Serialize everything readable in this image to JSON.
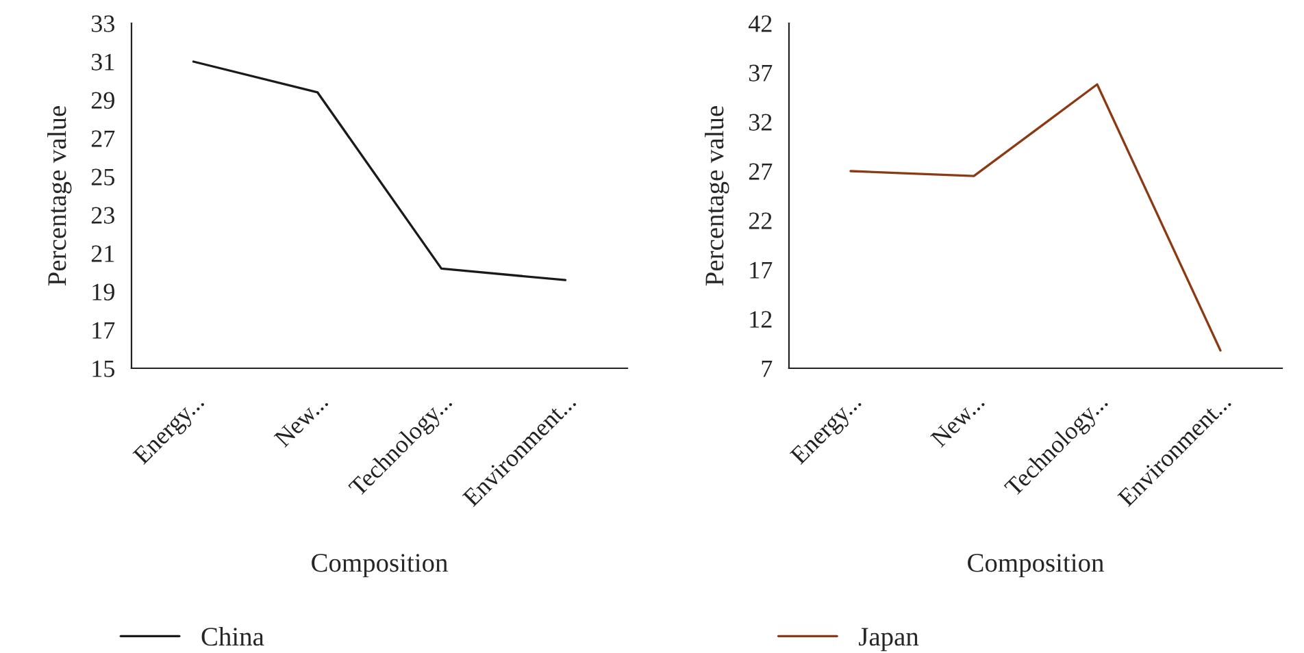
{
  "chart_data": [
    {
      "type": "line",
      "xlabel": "Composition",
      "ylabel": "Percentage value",
      "categories": [
        "Energy...",
        "New...",
        "Technology...",
        "Environment..."
      ],
      "series": [
        {
          "name": "China",
          "color": "#1a1a1a",
          "values": [
            31.0,
            29.4,
            20.2,
            19.6
          ]
        }
      ],
      "ylim": [
        15,
        33
      ],
      "yticks": [
        15,
        17,
        19,
        21,
        23,
        25,
        27,
        29,
        31,
        33
      ],
      "grid": false,
      "legend": "bottom left",
      "marker": "none",
      "line_style": "solid"
    },
    {
      "type": "line",
      "xlabel": "Composition",
      "ylabel": "Percentage value",
      "categories": [
        "Energy...",
        "New...",
        "Technology...",
        "Environment..."
      ],
      "series": [
        {
          "name": "Japan",
          "color": "#8b3a14",
          "values": [
            27.0,
            26.5,
            35.8,
            8.8
          ]
        }
      ],
      "ylim": [
        7,
        42
      ],
      "yticks": [
        7,
        12,
        17,
        22,
        27,
        32,
        37,
        42
      ],
      "grid": false,
      "legend": "bottom left",
      "marker": "none",
      "line_style": "solid"
    }
  ]
}
